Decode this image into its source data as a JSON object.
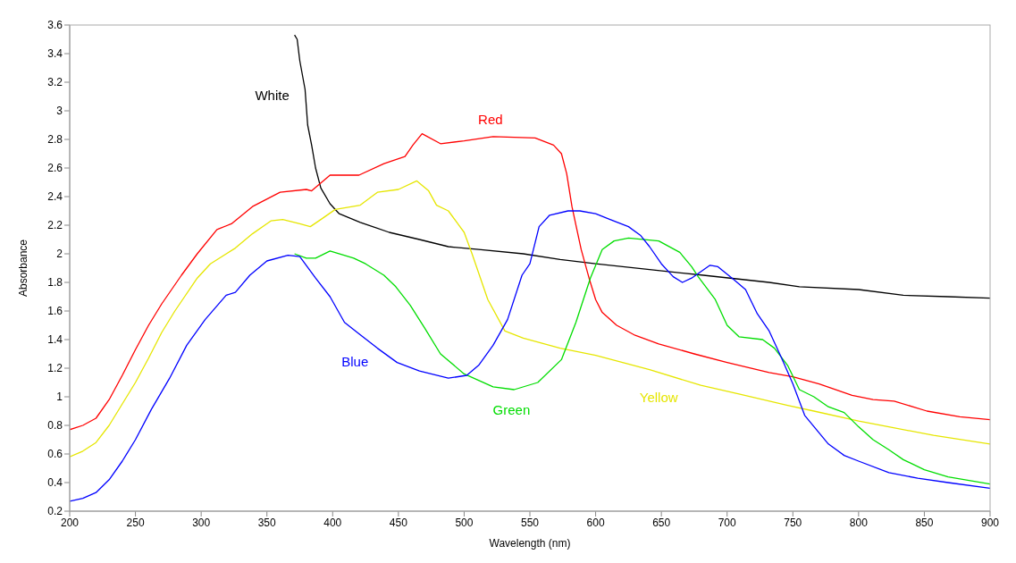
{
  "chart_data": {
    "type": "line",
    "xlabel": "Wavelength (nm)",
    "ylabel": "Absorbance",
    "xlim": [
      200,
      900
    ],
    "xticks": [
      200,
      250,
      300,
      350,
      400,
      450,
      500,
      550,
      600,
      650,
      700,
      750,
      800,
      850,
      900
    ],
    "ylim": [
      0.2,
      3.6
    ],
    "yticks": [
      0.2,
      0.4,
      0.6,
      0.8,
      1,
      1.2,
      1.4,
      1.6,
      1.8,
      2,
      2.2,
      2.4,
      2.6,
      2.8,
      3,
      3.2,
      3.4,
      3.6
    ],
    "marker": "none",
    "line_style": "solid",
    "series": [
      {
        "name": "White",
        "color": "#000000",
        "x": [
          371,
          373,
          375,
          379,
          381,
          384,
          387,
          391,
          398,
          405,
          421,
          443,
          466,
          488,
          511,
          545,
          573,
          600,
          641,
          682,
          732,
          755,
          800,
          834,
          868,
          900
        ],
        "values": [
          3.53,
          3.5,
          3.35,
          3.15,
          2.9,
          2.76,
          2.6,
          2.46,
          2.35,
          2.28,
          2.22,
          2.15,
          2.1,
          2.05,
          2.03,
          2.0,
          1.96,
          1.93,
          1.89,
          1.85,
          1.8,
          1.77,
          1.75,
          1.71,
          1.7,
          1.69
        ]
      },
      {
        "name": "Red",
        "color": "#ff0000",
        "x": [
          200,
          210,
          220,
          230,
          240,
          250,
          260,
          270,
          285,
          297,
          312,
          323,
          339,
          360,
          380,
          384,
          398,
          420,
          439,
          455,
          461,
          468,
          482,
          500,
          522,
          554,
          568,
          574,
          578,
          582,
          589,
          595,
          600,
          605,
          616,
          630,
          648,
          675,
          700,
          732,
          750,
          770,
          795,
          811,
          827,
          852,
          877,
          900
        ],
        "values": [
          0.77,
          0.8,
          0.85,
          0.98,
          1.15,
          1.33,
          1.5,
          1.65,
          1.85,
          2.0,
          2.17,
          2.21,
          2.33,
          2.43,
          2.45,
          2.44,
          2.55,
          2.55,
          2.63,
          2.68,
          2.76,
          2.84,
          2.77,
          2.79,
          2.82,
          2.81,
          2.76,
          2.7,
          2.56,
          2.33,
          2.03,
          1.83,
          1.68,
          1.59,
          1.5,
          1.43,
          1.37,
          1.3,
          1.24,
          1.17,
          1.14,
          1.09,
          1.01,
          0.98,
          0.97,
          0.9,
          0.86,
          0.84
        ]
      },
      {
        "name": "Yellow",
        "color": "#e6e600",
        "x": [
          200,
          210,
          220,
          230,
          240,
          250,
          260,
          270,
          280,
          297,
          307,
          326,
          339,
          353,
          362,
          375,
          383,
          391,
          402,
          421,
          434,
          450,
          464,
          473,
          479,
          488,
          500,
          506,
          518,
          531,
          545,
          573,
          600,
          641,
          680,
          709,
          746,
          766,
          800,
          823,
          857,
          900
        ],
        "values": [
          0.58,
          0.62,
          0.68,
          0.8,
          0.95,
          1.1,
          1.27,
          1.45,
          1.6,
          1.83,
          1.93,
          2.04,
          2.14,
          2.23,
          2.24,
          2.21,
          2.19,
          2.24,
          2.31,
          2.34,
          2.43,
          2.45,
          2.51,
          2.44,
          2.34,
          2.3,
          2.15,
          2.0,
          1.68,
          1.46,
          1.41,
          1.34,
          1.29,
          1.19,
          1.08,
          1.02,
          0.94,
          0.9,
          0.83,
          0.79,
          0.73,
          0.67
        ]
      },
      {
        "name": "Green",
        "color": "#00dd00",
        "x": [
          371,
          380,
          387,
          398,
          416,
          425,
          439,
          448,
          459,
          470,
          482,
          500,
          522,
          538,
          556,
          574,
          585,
          596,
          605,
          614,
          625,
          648,
          664,
          673,
          678,
          691,
          700,
          709,
          727,
          736,
          746,
          755,
          766,
          777,
          789,
          800,
          811,
          823,
          834,
          850,
          868,
          900
        ],
        "values": [
          2.0,
          1.97,
          1.97,
          2.02,
          1.97,
          1.93,
          1.85,
          1.77,
          1.64,
          1.48,
          1.3,
          1.16,
          1.07,
          1.05,
          1.1,
          1.26,
          1.52,
          1.83,
          2.03,
          2.09,
          2.11,
          2.09,
          2.01,
          1.91,
          1.84,
          1.68,
          1.5,
          1.42,
          1.4,
          1.34,
          1.22,
          1.05,
          1.0,
          0.93,
          0.89,
          0.79,
          0.7,
          0.63,
          0.56,
          0.49,
          0.44,
          0.39
        ]
      },
      {
        "name": "Blue",
        "color": "#0000ff",
        "x": [
          200,
          210,
          220,
          230,
          240,
          250,
          262,
          276,
          289,
          303,
          319,
          326,
          337,
          350,
          366,
          375,
          387,
          398,
          409,
          420,
          434,
          449,
          466,
          488,
          502,
          511,
          522,
          533,
          544,
          550,
          557,
          565,
          579,
          588,
          600,
          611,
          625,
          634,
          641,
          650,
          659,
          666,
          673,
          687,
          693,
          705,
          714,
          723,
          732,
          741,
          750,
          759,
          768,
          777,
          789,
          800,
          823,
          845,
          868,
          900
        ],
        "values": [
          0.27,
          0.29,
          0.33,
          0.42,
          0.55,
          0.7,
          0.91,
          1.13,
          1.36,
          1.54,
          1.71,
          1.73,
          1.85,
          1.95,
          1.99,
          1.98,
          1.83,
          1.7,
          1.52,
          1.44,
          1.34,
          1.24,
          1.18,
          1.13,
          1.15,
          1.22,
          1.36,
          1.54,
          1.85,
          1.93,
          2.19,
          2.27,
          2.3,
          2.3,
          2.28,
          2.24,
          2.19,
          2.13,
          2.05,
          1.93,
          1.84,
          1.8,
          1.83,
          1.92,
          1.91,
          1.82,
          1.75,
          1.58,
          1.46,
          1.28,
          1.09,
          0.87,
          0.77,
          0.67,
          0.59,
          0.55,
          0.47,
          0.43,
          0.4,
          0.36
        ]
      }
    ]
  }
}
